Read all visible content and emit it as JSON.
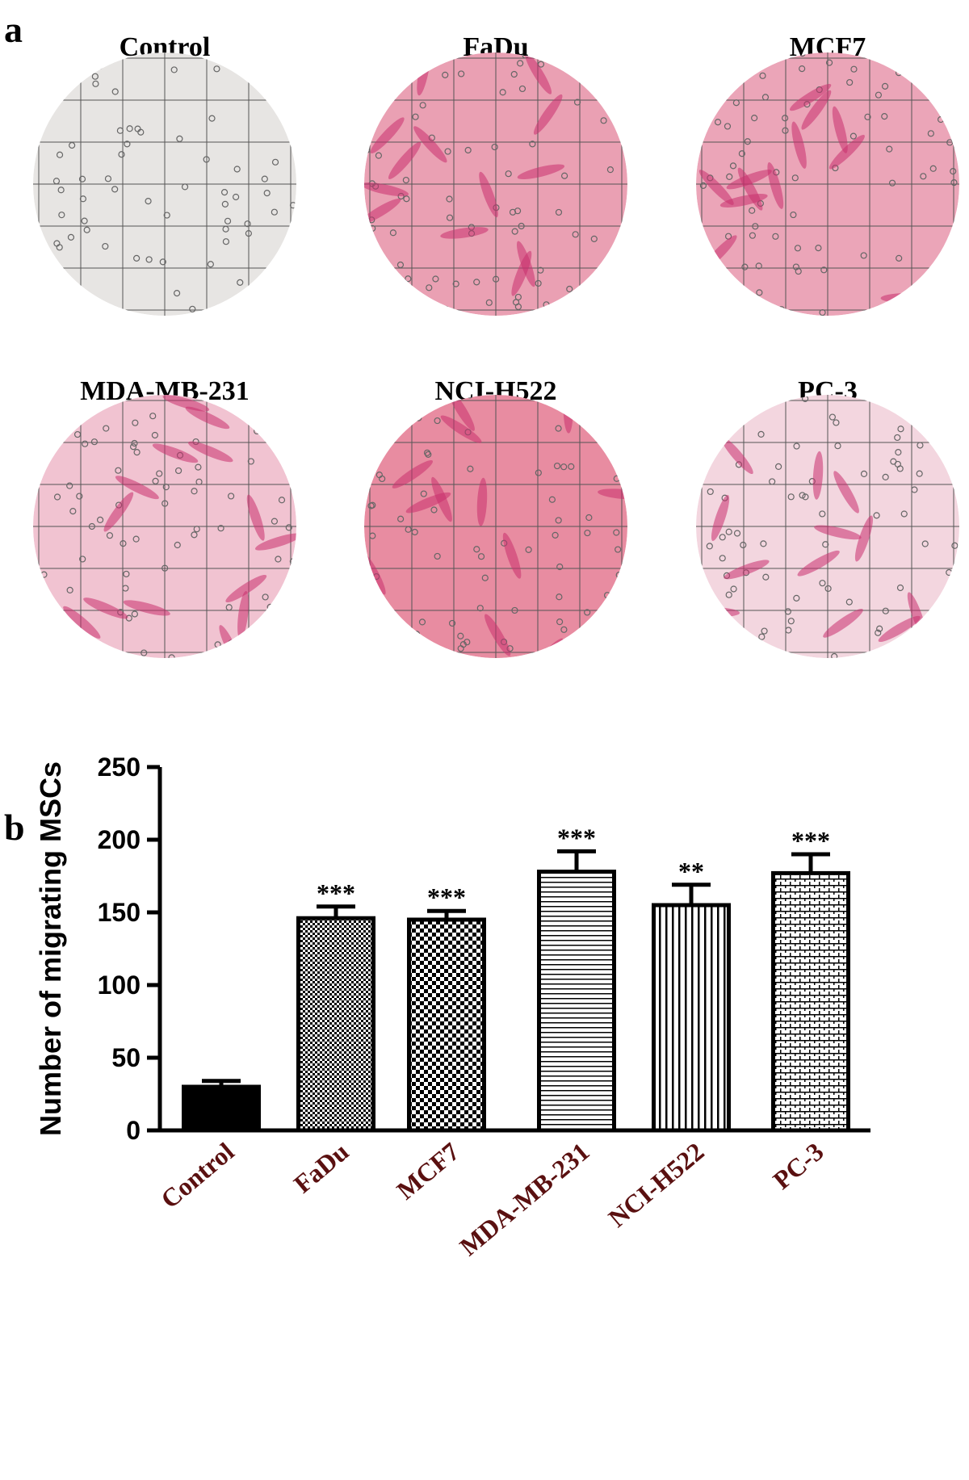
{
  "panel_a": {
    "label": "a",
    "titles": [
      "Control",
      "FaDu",
      "MCF7",
      "MDA-MB-231",
      "NCI-H522",
      "PC-3"
    ],
    "tints": [
      "#e7e5e3",
      "#eaa0b3",
      "#eba5b8",
      "#f1c3d1",
      "#e88ca1",
      "#f3d6df"
    ]
  },
  "panel_b_label": "b",
  "chart_data": {
    "type": "bar",
    "categories": [
      "Control",
      "FaDu",
      "MCF7",
      "MDA-MB-231",
      "NCI-H522",
      "PC-3"
    ],
    "values": [
      30,
      146,
      145,
      178,
      155,
      177
    ],
    "errors": [
      4,
      8,
      6,
      14,
      14,
      13
    ],
    "annotations": [
      null,
      "***",
      "***",
      "***",
      "**",
      "***"
    ],
    "ylabel": "Number of migrating MSCs",
    "ylim": [
      0,
      250
    ],
    "yticks": [
      0,
      50,
      100,
      150,
      200,
      250
    ],
    "color": "#000000",
    "label_color": "#5a1010"
  }
}
